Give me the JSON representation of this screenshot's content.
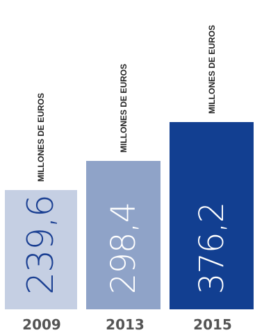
{
  "chart_data": {
    "type": "bar",
    "categories": [
      "2009",
      "2013",
      "2015"
    ],
    "values": [
      239.6,
      298.4,
      376.2
    ],
    "value_labels": [
      "239,6",
      "298,4",
      "376,2"
    ],
    "unit_label": "MILLONES DE EUROS",
    "title": "",
    "xlabel": "",
    "ylabel": "",
    "colors": [
      "#c5cfe3",
      "#8fa3c8",
      "#123f91"
    ],
    "value_label_colors": [
      "#1a3f92",
      "#ffffff",
      "#ffffff"
    ]
  }
}
